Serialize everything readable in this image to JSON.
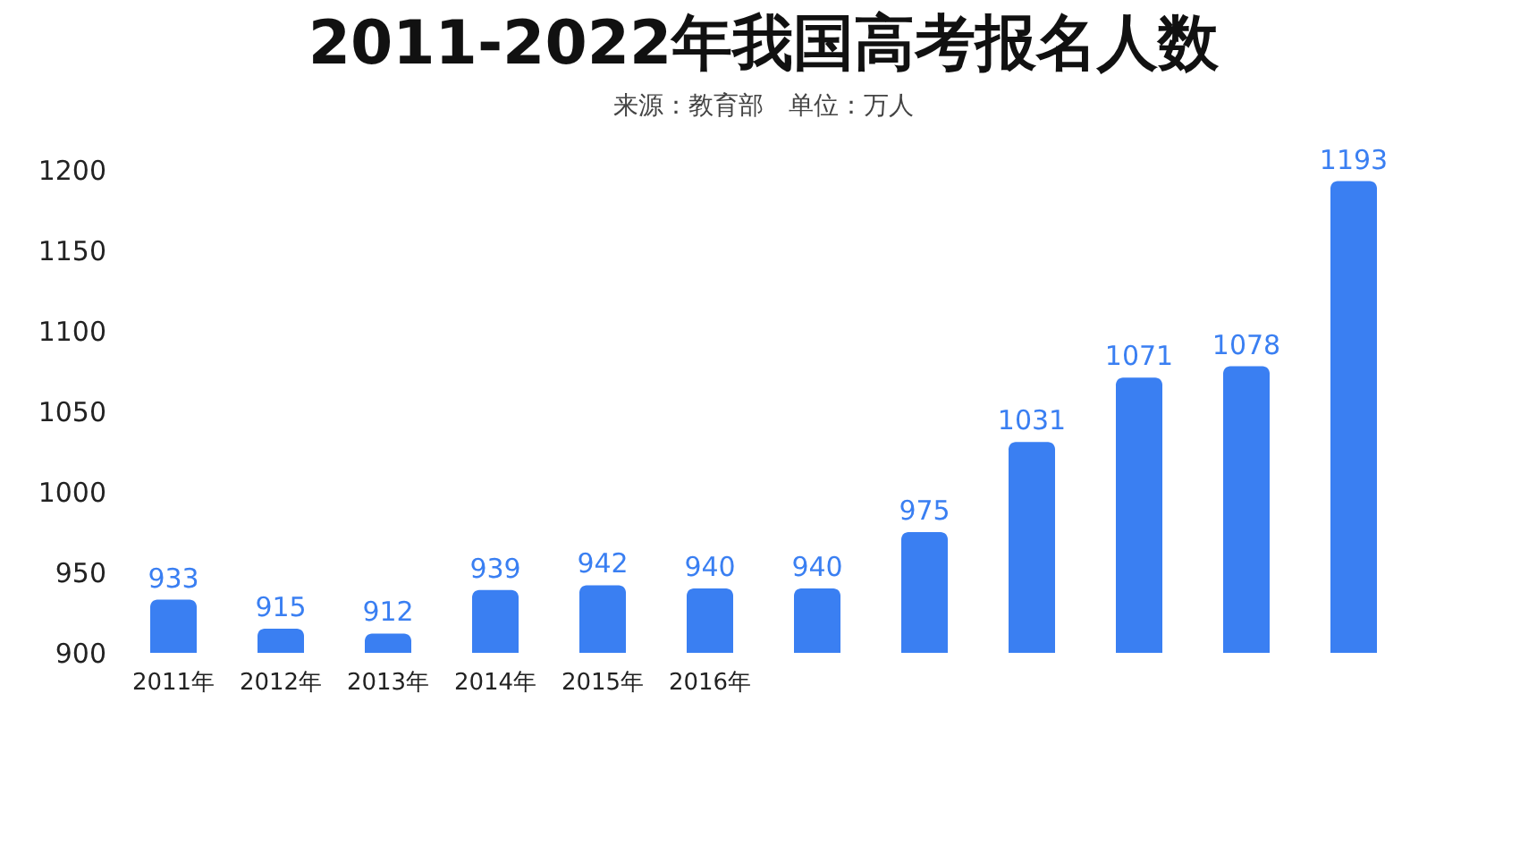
{
  "chart_data": {
    "type": "bar",
    "title": "2011-2022年我国高考报名人数",
    "subtitle": "来源：教育部　单位：万人",
    "categories": [
      "2011年",
      "2012年",
      "2013年",
      "2014年",
      "2015年",
      "2016年",
      null,
      null,
      null,
      null,
      null,
      null
    ],
    "values": [
      933,
      915,
      912,
      939,
      942,
      940,
      940,
      975,
      1031,
      1071,
      1078,
      1193
    ],
    "color": "#3a7ff2",
    "ylim": [
      900,
      1200
    ],
    "yticks": [
      900,
      950,
      1000,
      1050,
      1100,
      1150,
      1200
    ],
    "grid": false,
    "data_labels": true
  }
}
